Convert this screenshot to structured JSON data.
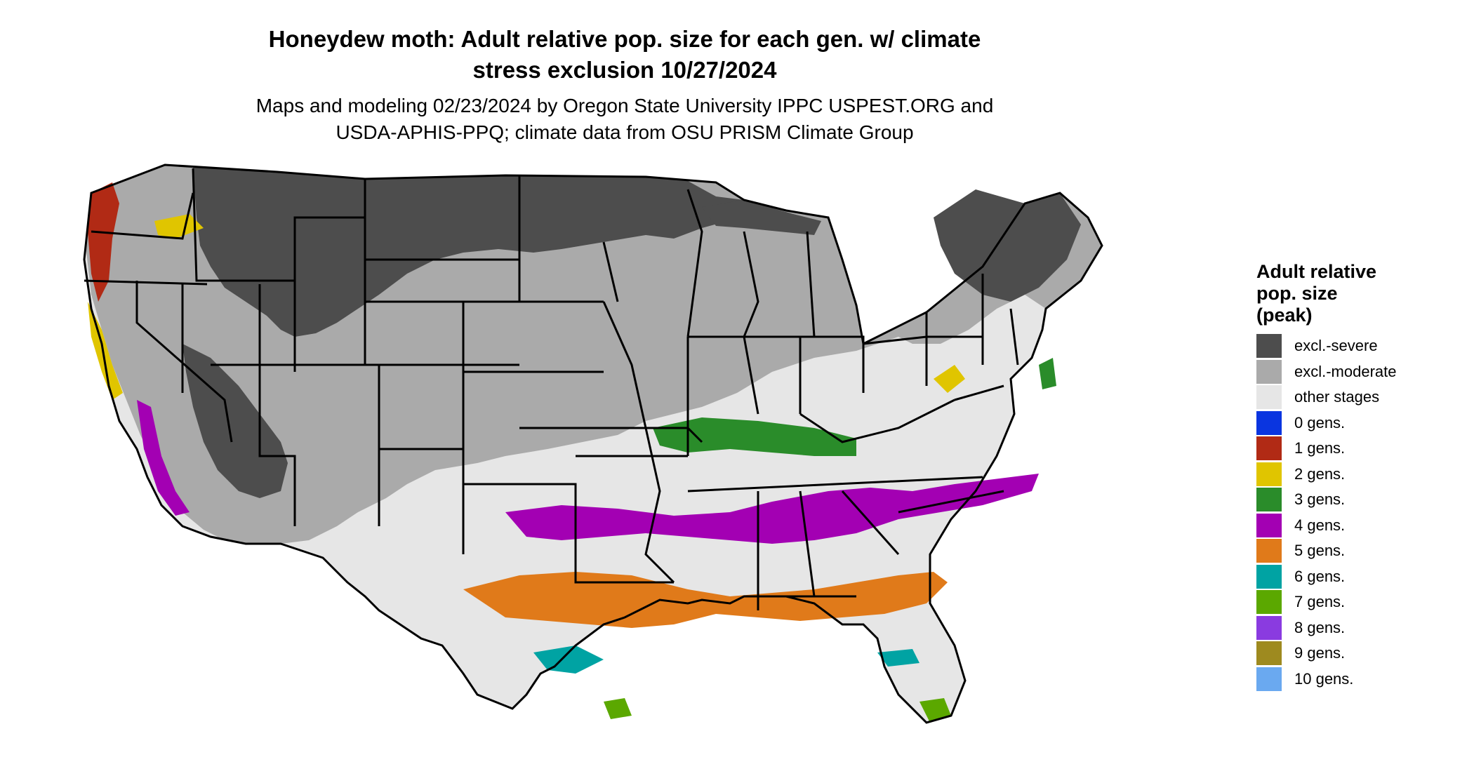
{
  "title_line1": "Honeydew moth: Adult relative pop. size for each gen. w/ climate",
  "title_line2": "stress exclusion 10/27/2024",
  "subtitle_line1": "Maps and modeling 02/23/2024 by Oregon State University IPPC USPEST.ORG and",
  "subtitle_line2": "USDA-APHIS-PPQ; climate data from OSU PRISM Climate Group",
  "legend": {
    "title": "Adult relative\npop. size\n(peak)",
    "items": [
      {
        "label": "excl.-severe",
        "color": "#4d4d4d"
      },
      {
        "label": "excl.-moderate",
        "color": "#aaaaaa"
      },
      {
        "label": "other stages",
        "color": "#e6e6e6"
      },
      {
        "label": "0 gens.",
        "color": "#0a35e0"
      },
      {
        "label": "1 gens.",
        "color": "#b12a15"
      },
      {
        "label": "2 gens.",
        "color": "#e0c500"
      },
      {
        "label": "3 gens.",
        "color": "#2a8c2a"
      },
      {
        "label": "4 gens.",
        "color": "#a300b3"
      },
      {
        "label": "5 gens.",
        "color": "#e07a1a"
      },
      {
        "label": "6 gens.",
        "color": "#00a3a3"
      },
      {
        "label": "7 gens.",
        "color": "#5ba800"
      },
      {
        "label": "8 gens.",
        "color": "#8a3be0"
      },
      {
        "label": "9 gens.",
        "color": "#9e8a1f"
      },
      {
        "label": "10 gens.",
        "color": "#6aa9f0"
      }
    ]
  }
}
